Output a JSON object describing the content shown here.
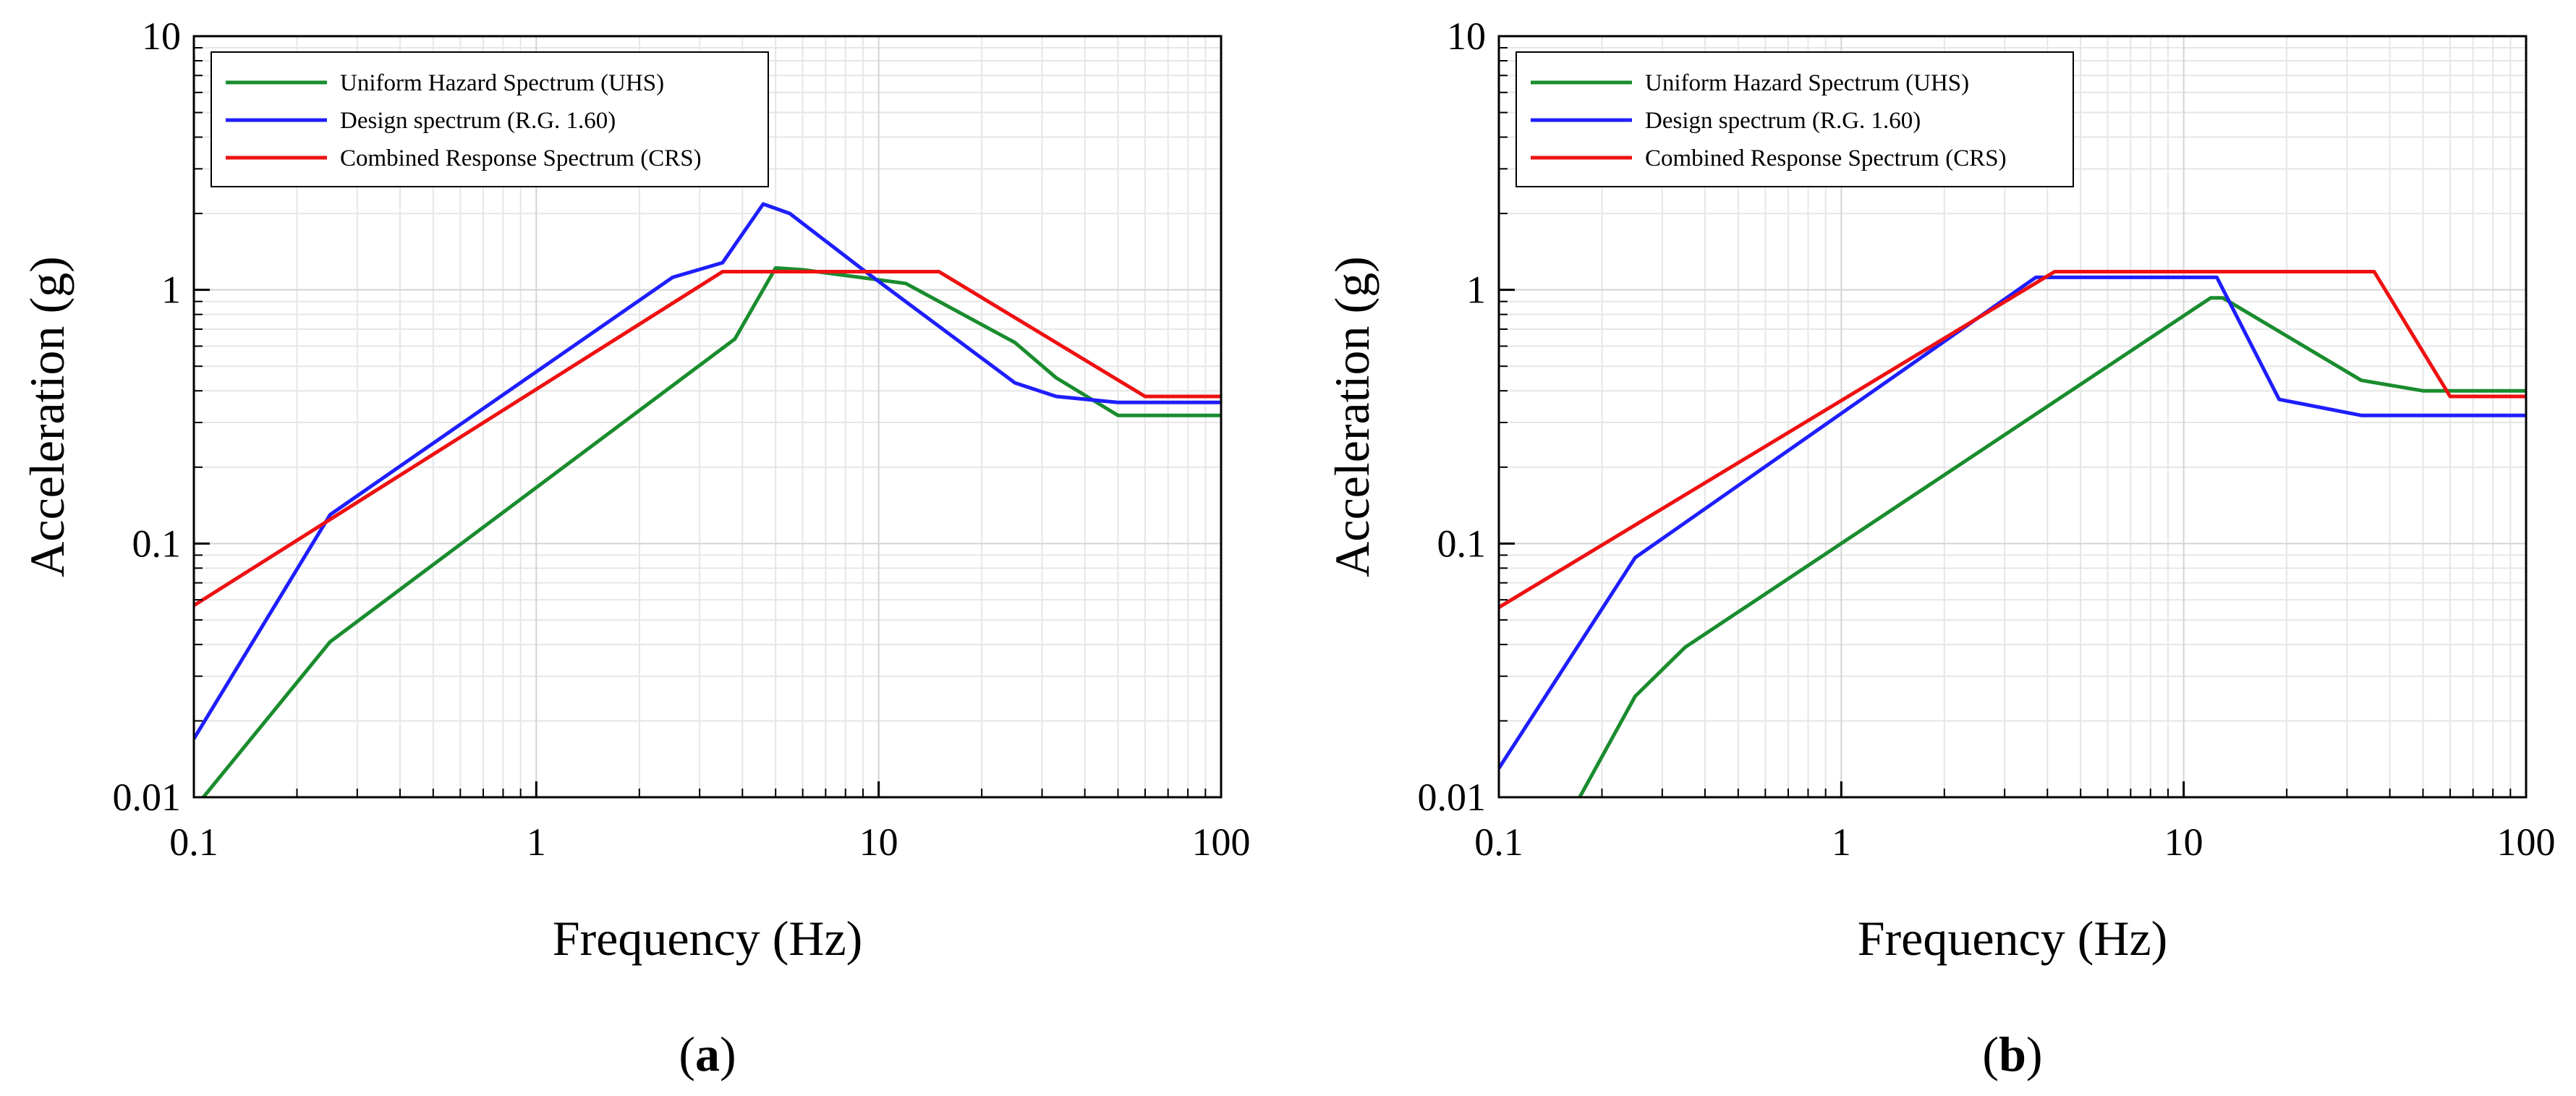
{
  "chart_data": [
    {
      "type": "line",
      "panel_label": "a",
      "caption_open": "(",
      "caption_close": ")",
      "title": "",
      "xlabel": "Frequency (Hz)",
      "ylabel": "Acceleration (g)",
      "xscale": "log",
      "yscale": "log",
      "xlim": [
        0.1,
        100
      ],
      "ylim": [
        0.01,
        10
      ],
      "x_ticks": [
        {
          "value": 0.1,
          "label": "0.1"
        },
        {
          "value": 1,
          "label": "1"
        },
        {
          "value": 10,
          "label": "10"
        },
        {
          "value": 100,
          "label": "100"
        }
      ],
      "y_ticks": [
        {
          "value": 0.01,
          "label": "0.01"
        },
        {
          "value": 0.1,
          "label": "0.1"
        },
        {
          "value": 1,
          "label": "1"
        },
        {
          "value": 10,
          "label": "10"
        }
      ],
      "grid": true,
      "legend_position": "top-left",
      "series": [
        {
          "name": "Uniform Hazard Spectrum (UHS)",
          "color": "#1a8c2e",
          "x": [
            0.1,
            0.25,
            3.8,
            5.0,
            6.0,
            12.0,
            25.0,
            33.0,
            50.0,
            100.0
          ],
          "y": [
            0.009,
            0.041,
            0.64,
            1.22,
            1.2,
            1.06,
            0.62,
            0.45,
            0.32,
            0.32
          ]
        },
        {
          "name": "Design spectrum (R.G. 1.60)",
          "color": "#1e1eff",
          "x": [
            0.1,
            0.25,
            2.5,
            3.5,
            4.6,
            5.5,
            9.0,
            25.0,
            33.0,
            50.0,
            100.0
          ],
          "y": [
            0.017,
            0.13,
            1.12,
            1.28,
            2.18,
            2.0,
            1.2,
            0.43,
            0.38,
            0.36,
            0.36
          ]
        },
        {
          "name": "Combined Response Spectrum (CRS)",
          "color": "#ee1111",
          "x": [
            0.1,
            3.5,
            15.0,
            60.0,
            100.0
          ],
          "y": [
            0.057,
            1.18,
            1.18,
            0.38,
            0.38
          ]
        }
      ]
    },
    {
      "type": "line",
      "panel_label": "b",
      "caption_open": "(",
      "caption_close": ")",
      "title": "",
      "xlabel": "Frequency (Hz)",
      "ylabel": "Acceleration (g)",
      "xscale": "log",
      "yscale": "log",
      "xlim": [
        0.1,
        100
      ],
      "ylim": [
        0.01,
        10
      ],
      "x_ticks": [
        {
          "value": 0.1,
          "label": "0.1"
        },
        {
          "value": 1,
          "label": "1"
        },
        {
          "value": 10,
          "label": "10"
        },
        {
          "value": 100,
          "label": "100"
        }
      ],
      "y_ticks": [
        {
          "value": 0.01,
          "label": "0.01"
        },
        {
          "value": 0.1,
          "label": "0.1"
        },
        {
          "value": 1,
          "label": "1"
        },
        {
          "value": 10,
          "label": "10"
        }
      ],
      "grid": true,
      "legend_position": "top-left",
      "series": [
        {
          "name": "Uniform Hazard Spectrum (UHS)",
          "color": "#1a8c2e",
          "x": [
            0.165,
            0.25,
            0.35,
            12.0,
            13.0,
            33.0,
            50.0,
            100.0
          ],
          "y": [
            0.009,
            0.025,
            0.039,
            0.93,
            0.93,
            0.44,
            0.4,
            0.4
          ]
        },
        {
          "name": "Design spectrum (R.G. 1.60)",
          "color": "#1e1eff",
          "x": [
            0.1,
            0.25,
            3.7,
            12.5,
            19.0,
            33.0,
            50.0,
            100.0
          ],
          "y": [
            0.013,
            0.088,
            1.12,
            1.12,
            0.37,
            0.32,
            0.32,
            0.32
          ]
        },
        {
          "name": "Combined Response Spectrum (CRS)",
          "color": "#ee1111",
          "x": [
            0.1,
            4.2,
            36.0,
            60.0,
            100.0
          ],
          "y": [
            0.056,
            1.18,
            1.18,
            0.38,
            0.38
          ]
        }
      ]
    }
  ]
}
